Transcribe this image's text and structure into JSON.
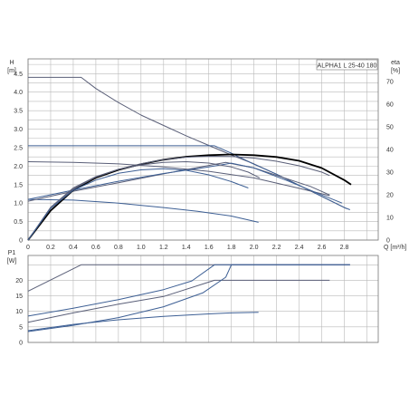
{
  "chart_data": [
    {
      "type": "line",
      "title": "ALPHA1 L 25-40 180",
      "ylabel": "H",
      "yunit": "[m]",
      "y2label": "eta",
      "y2unit": "[%]",
      "xunit": "Q [m³/h]",
      "xlim": [
        0,
        3.1
      ],
      "ylim": [
        0,
        4.9
      ],
      "y2lim": [
        0,
        80
      ],
      "grid": true,
      "x_ticks": [
        "0",
        "0.2",
        "0.4",
        "0.6",
        "0.8",
        "1.0",
        "1.2",
        "1.4",
        "1.6",
        "1.8",
        "2.0",
        "2.2",
        "2.4",
        "2.6",
        "2.8"
      ],
      "y_ticks": [
        "0",
        "0.5",
        "1.0",
        "1.5",
        "2.0",
        "2.5",
        "3.0",
        "3.5",
        "4.0",
        "4.5"
      ],
      "y2_ticks": [
        "0",
        "10",
        "20",
        "30",
        "40",
        "50",
        "60",
        "70"
      ],
      "series": [
        {
          "color": "#5a5f78",
          "width": 1,
          "points": [
            [
              0,
              4.4
            ],
            [
              0.47,
              4.4
            ],
            [
              0.6,
              4.1
            ],
            [
              0.8,
              3.72
            ],
            [
              1.0,
              3.38
            ],
            [
              1.2,
              3.1
            ],
            [
              1.4,
              2.82
            ],
            [
              1.6,
              2.56
            ],
            [
              1.8,
              2.3
            ],
            [
              2.0,
              2.06
            ],
            [
              2.2,
              1.78
            ],
            [
              2.4,
              1.48
            ],
            [
              2.6,
              1.18
            ],
            [
              2.82,
              0.85
            ]
          ]
        },
        {
          "color": "#3d5f94",
          "width": 1,
          "points": [
            [
              0,
              2.55
            ],
            [
              1.65,
              2.55
            ],
            [
              1.8,
              2.35
            ],
            [
              2.0,
              2.05
            ],
            [
              2.2,
              1.78
            ],
            [
              2.4,
              1.48
            ],
            [
              2.6,
              1.18
            ],
            [
              2.8,
              0.88
            ],
            [
              2.85,
              0.82
            ]
          ]
        },
        {
          "color": "#5a5f78",
          "width": 1,
          "points": [
            [
              0,
              2.12
            ],
            [
              0.4,
              2.1
            ],
            [
              0.8,
              2.06
            ],
            [
              1.2,
              1.98
            ],
            [
              1.6,
              1.86
            ],
            [
              2.0,
              1.68
            ],
            [
              2.4,
              1.4
            ],
            [
              2.67,
              1.2
            ]
          ]
        },
        {
          "color": "#3d5f94",
          "width": 1,
          "points": [
            [
              0,
              1.1
            ],
            [
              0.4,
              1.08
            ],
            [
              0.8,
              1.0
            ],
            [
              1.2,
              0.88
            ],
            [
              1.5,
              0.78
            ],
            [
              1.8,
              0.65
            ],
            [
              2.04,
              0.48
            ]
          ]
        },
        {
          "color": "#5a5f78",
          "width": 1,
          "points": [
            [
              0,
              1.05
            ],
            [
              0.4,
              1.32
            ],
            [
              0.8,
              1.55
            ],
            [
              1.2,
              1.79
            ],
            [
              1.6,
              2.02
            ],
            [
              1.75,
              2.1
            ],
            [
              2.0,
              1.95
            ],
            [
              2.5,
              1.45
            ],
            [
              2.67,
              1.22
            ]
          ]
        },
        {
          "color": "#3d5f94",
          "width": 1,
          "points": [
            [
              0,
              1.1
            ],
            [
              0.4,
              1.35
            ],
            [
              0.8,
              1.59
            ],
            [
              1.2,
              1.8
            ],
            [
              1.6,
              1.98
            ],
            [
              1.8,
              2.08
            ],
            [
              2.0,
              1.95
            ],
            [
              2.3,
              1.6
            ],
            [
              2.6,
              1.22
            ],
            [
              2.78,
              1.0
            ]
          ]
        },
        {
          "color": "#000000",
          "width": 1.8,
          "y2": true,
          "points": [
            [
              0,
              0
            ],
            [
              0.2,
              13
            ],
            [
              0.4,
              22
            ],
            [
              0.6,
              27.5
            ],
            [
              0.8,
              31
            ],
            [
              1.0,
              33.5
            ],
            [
              1.2,
              35.5
            ],
            [
              1.4,
              36.8
            ],
            [
              1.6,
              37.5
            ],
            [
              1.8,
              37.8
            ],
            [
              2.0,
              37.5
            ],
            [
              2.2,
              36.7
            ],
            [
              2.4,
              35
            ],
            [
              2.6,
              31.8
            ],
            [
              2.8,
              26.5
            ],
            [
              2.86,
              24.5
            ]
          ]
        },
        {
          "color": "#5a5f78",
          "width": 1,
          "y2": true,
          "points": [
            [
              0,
              0
            ],
            [
              0.2,
              14
            ],
            [
              0.4,
              22.5
            ],
            [
              0.6,
              27.8
            ],
            [
              0.8,
              31.3
            ],
            [
              1.0,
              33.7
            ],
            [
              1.2,
              35.5
            ],
            [
              1.4,
              36.6
            ],
            [
              1.6,
              37.0
            ],
            [
              1.8,
              36.9
            ],
            [
              2.0,
              36.2
            ],
            [
              2.2,
              34.8
            ],
            [
              2.4,
              32.8
            ],
            [
              2.6,
              30.0
            ],
            [
              2.67,
              28.5
            ]
          ]
        },
        {
          "color": "#5a5f78",
          "width": 1,
          "y2": true,
          "points": [
            [
              0,
              0
            ],
            [
              0.2,
              14.5
            ],
            [
              0.4,
              23.0
            ],
            [
              0.6,
              28.0
            ],
            [
              0.8,
              31.2
            ],
            [
              1.0,
              33.2
            ],
            [
              1.2,
              34.3
            ],
            [
              1.4,
              34.6
            ],
            [
              1.6,
              34.0
            ],
            [
              1.8,
              32.3
            ],
            [
              1.95,
              30.0
            ],
            [
              2.05,
              27.5
            ]
          ]
        },
        {
          "color": "#3d5f94",
          "width": 1,
          "y2": true,
          "points": [
            [
              0,
              0
            ],
            [
              0.2,
              14.0
            ],
            [
              0.4,
              22.0
            ],
            [
              0.6,
              26.5
            ],
            [
              0.8,
              29.5
            ],
            [
              1.0,
              31.0
            ],
            [
              1.2,
              31.5
            ],
            [
              1.4,
              30.8
            ],
            [
              1.6,
              28.8
            ],
            [
              1.8,
              25.8
            ],
            [
              1.95,
              23.0
            ]
          ]
        }
      ]
    },
    {
      "type": "line",
      "ylabel": "P1",
      "yunit": "[W]",
      "xlim": [
        0,
        3.1
      ],
      "ylim": [
        0,
        28
      ],
      "grid": true,
      "y_ticks": [
        "0",
        "5",
        "10",
        "15",
        "20"
      ],
      "series": [
        {
          "color": "#5a5f78",
          "width": 1,
          "points": [
            [
              0,
              16.5
            ],
            [
              0.47,
              25
            ],
            [
              2.85,
              25
            ]
          ]
        },
        {
          "color": "#3d5f94",
          "width": 1,
          "points": [
            [
              0,
              8.5
            ],
            [
              0.4,
              11.0
            ],
            [
              0.8,
              13.8
            ],
            [
              1.2,
              17.0
            ],
            [
              1.45,
              19.8
            ],
            [
              1.65,
              25
            ],
            [
              2.85,
              25
            ]
          ]
        },
        {
          "color": "#5a5f78",
          "width": 1,
          "points": [
            [
              0,
              6.5
            ],
            [
              0.4,
              9.5
            ],
            [
              0.8,
              12.3
            ],
            [
              1.2,
              14.8
            ],
            [
              1.65,
              20.0
            ],
            [
              2.67,
              20.0
            ]
          ]
        },
        {
          "color": "#3d5f94",
          "width": 1,
          "points": [
            [
              0,
              3.5
            ],
            [
              0.4,
              5.5
            ],
            [
              0.8,
              8.0
            ],
            [
              1.2,
              11.5
            ],
            [
              1.55,
              16.0
            ],
            [
              1.75,
              21.0
            ],
            [
              1.8,
              25
            ],
            [
              2.85,
              25
            ]
          ]
        },
        {
          "color": "#3d5f94",
          "width": 1,
          "points": [
            [
              0,
              3.8
            ],
            [
              0.4,
              5.8
            ],
            [
              0.8,
              7.3
            ],
            [
              1.2,
              8.4
            ],
            [
              1.6,
              9.2
            ],
            [
              1.8,
              9.5
            ],
            [
              2.04,
              9.7
            ]
          ]
        }
      ]
    }
  ]
}
